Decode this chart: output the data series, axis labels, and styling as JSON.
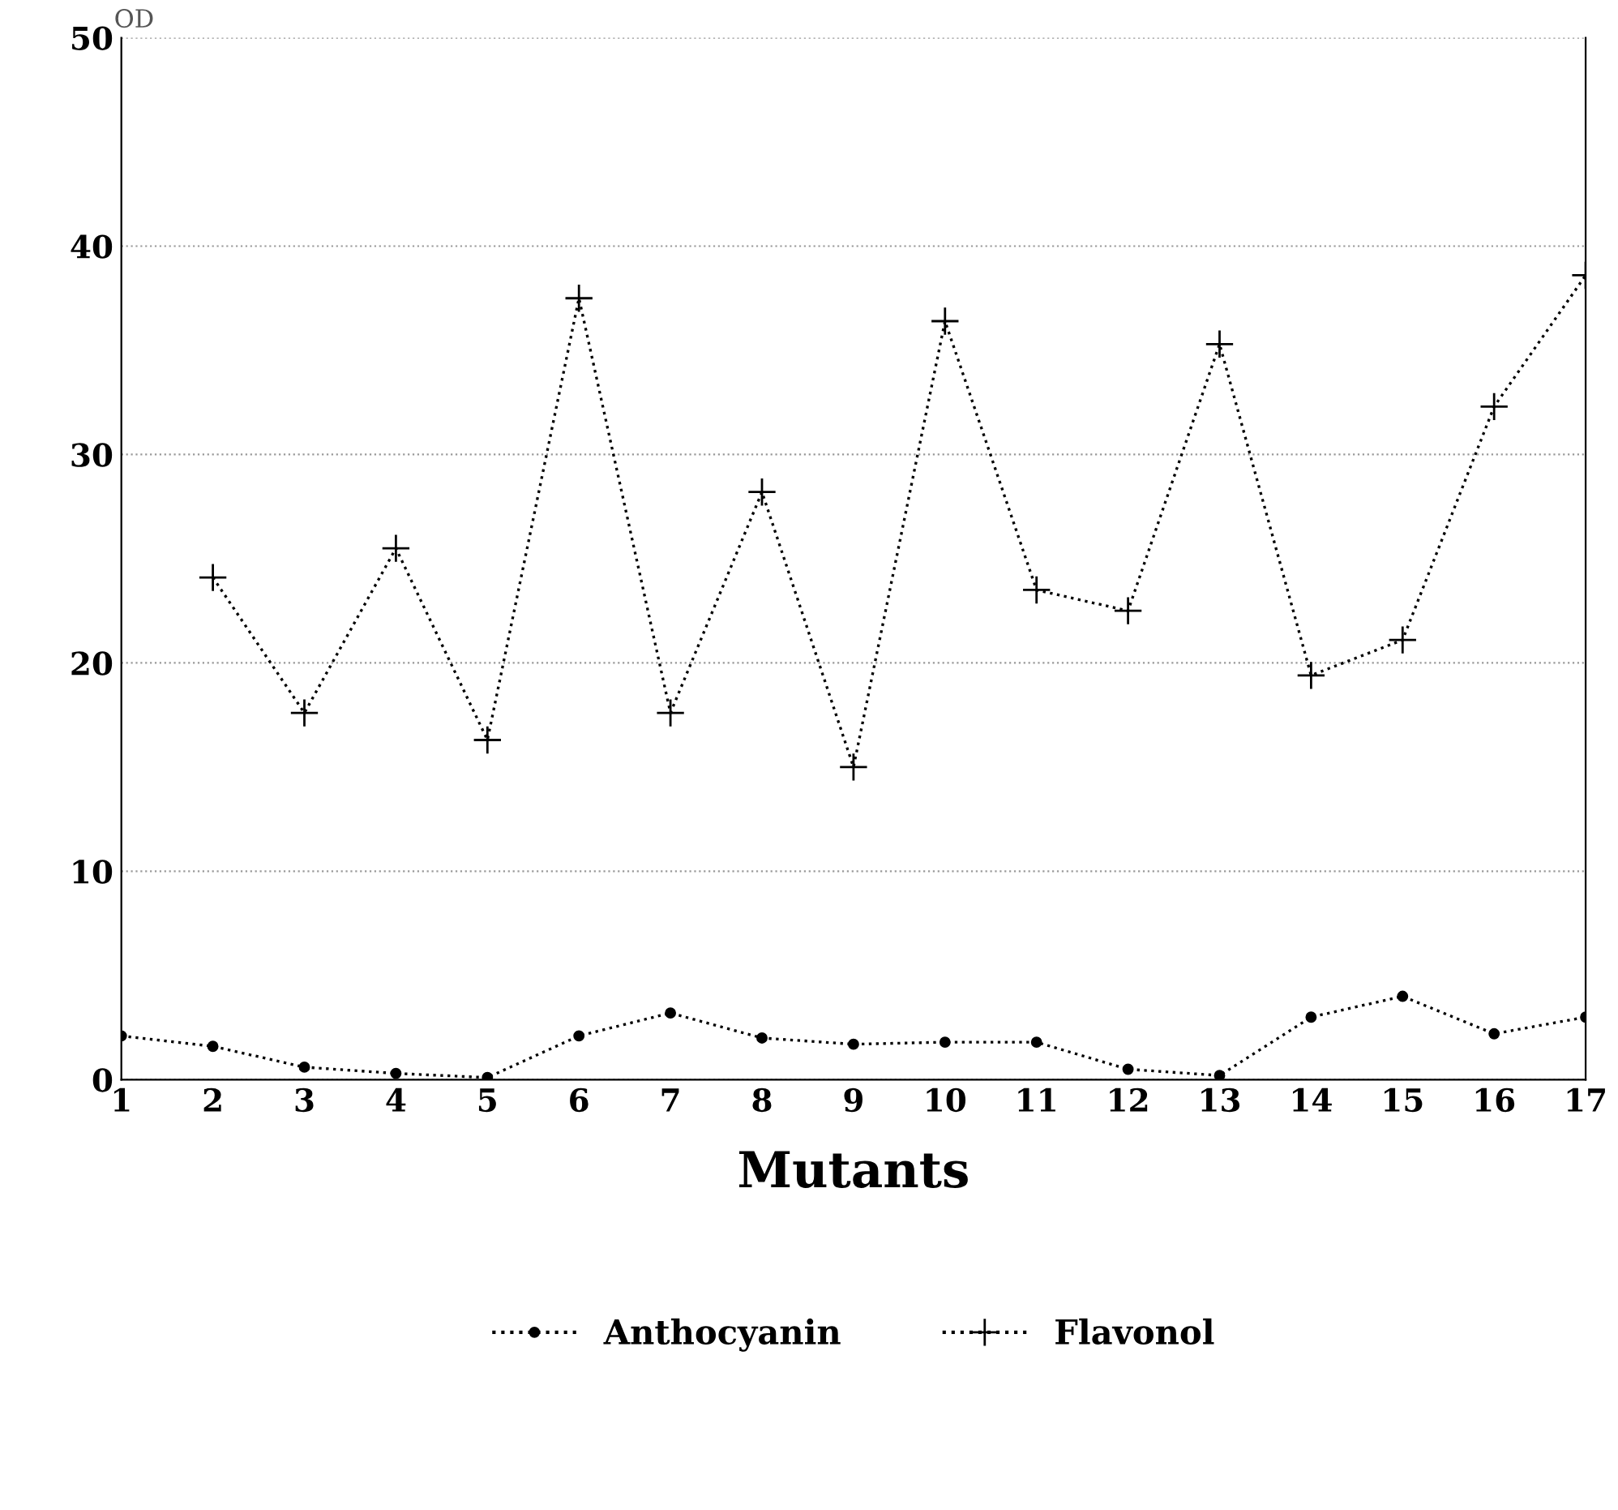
{
  "chart_data": {
    "type": "line",
    "xlabel": "Mutants",
    "ylabel": "OD",
    "x": [
      1,
      2,
      3,
      4,
      5,
      6,
      7,
      8,
      9,
      10,
      11,
      12,
      13,
      14,
      15,
      16,
      17
    ],
    "series": [
      {
        "name": "Anthocyanin",
        "color": "#000000",
        "marker": "circle",
        "values": [
          2.1,
          1.6,
          0.6,
          0.3,
          0.1,
          2.1,
          3.2,
          2.0,
          1.7,
          1.8,
          1.8,
          0.5,
          0.2,
          3.0,
          4.0,
          2.2,
          3.0
        ]
      },
      {
        "name": "Flavonol",
        "color": "#000000",
        "marker": "cross",
        "values": [
          null,
          24.1,
          17.6,
          25.5,
          16.3,
          37.5,
          17.6,
          28.2,
          15.0,
          36.4,
          23.5,
          22.5,
          35.3,
          19.4,
          21.1,
          32.3,
          38.6
        ]
      }
    ],
    "xlim": [
      1,
      17
    ],
    "xticks": [
      1,
      2,
      3,
      4,
      5,
      6,
      7,
      8,
      9,
      10,
      11,
      12,
      13,
      14,
      15,
      16,
      17
    ],
    "ylim": [
      0,
      50
    ],
    "yticks": [
      0,
      10,
      20,
      30,
      40,
      50
    ],
    "grid": "y",
    "legend": "bottom",
    "line_style": "dotted"
  }
}
